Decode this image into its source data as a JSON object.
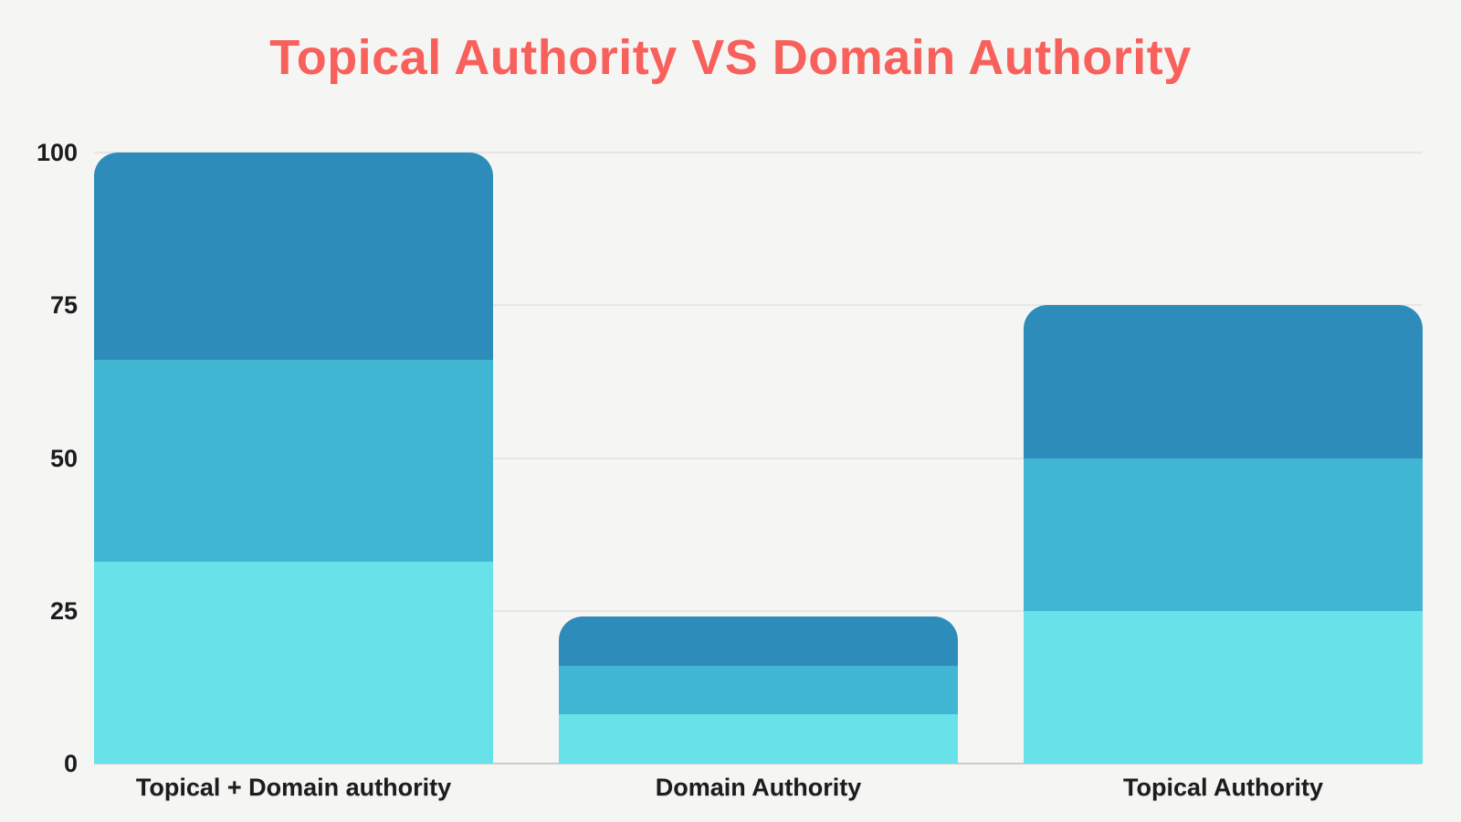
{
  "title": {
    "text": "Topical Authority VS Domain Authority",
    "color": "#f8605c"
  },
  "chart_data": {
    "type": "bar",
    "stacked": true,
    "title": "Topical Authority VS Domain Authority",
    "categories": [
      "Topical + Domain authority",
      "Domain Authority",
      "Topical Authority"
    ],
    "series": [
      {
        "name": "light-cyan-bottom",
        "color": "#67e2e9",
        "values": [
          33,
          8,
          25
        ]
      },
      {
        "name": "mid-blue-middle",
        "color": "#41b6d3",
        "values": [
          33,
          8,
          25
        ]
      },
      {
        "name": "dark-blue-top",
        "color": "#2e8cba",
        "values": [
          34,
          8,
          25
        ]
      }
    ],
    "totals": [
      100,
      24,
      75
    ],
    "xlabel": "",
    "ylabel": "",
    "ylim": [
      0,
      100
    ],
    "yticks": [
      0,
      25,
      50,
      75,
      100
    ],
    "grid": true,
    "legend": "none"
  },
  "colors": {
    "background": "#f5f5f4",
    "gridline": "#e6e6e4",
    "axis_line": "#cbcbc9",
    "axis_text": "#1c1c1c",
    "title": "#f8605c",
    "bar_dark_blue": "#2e8cba",
    "bar_mid_blue": "#41b6d3",
    "bar_light_cyan": "#67e2e9"
  }
}
